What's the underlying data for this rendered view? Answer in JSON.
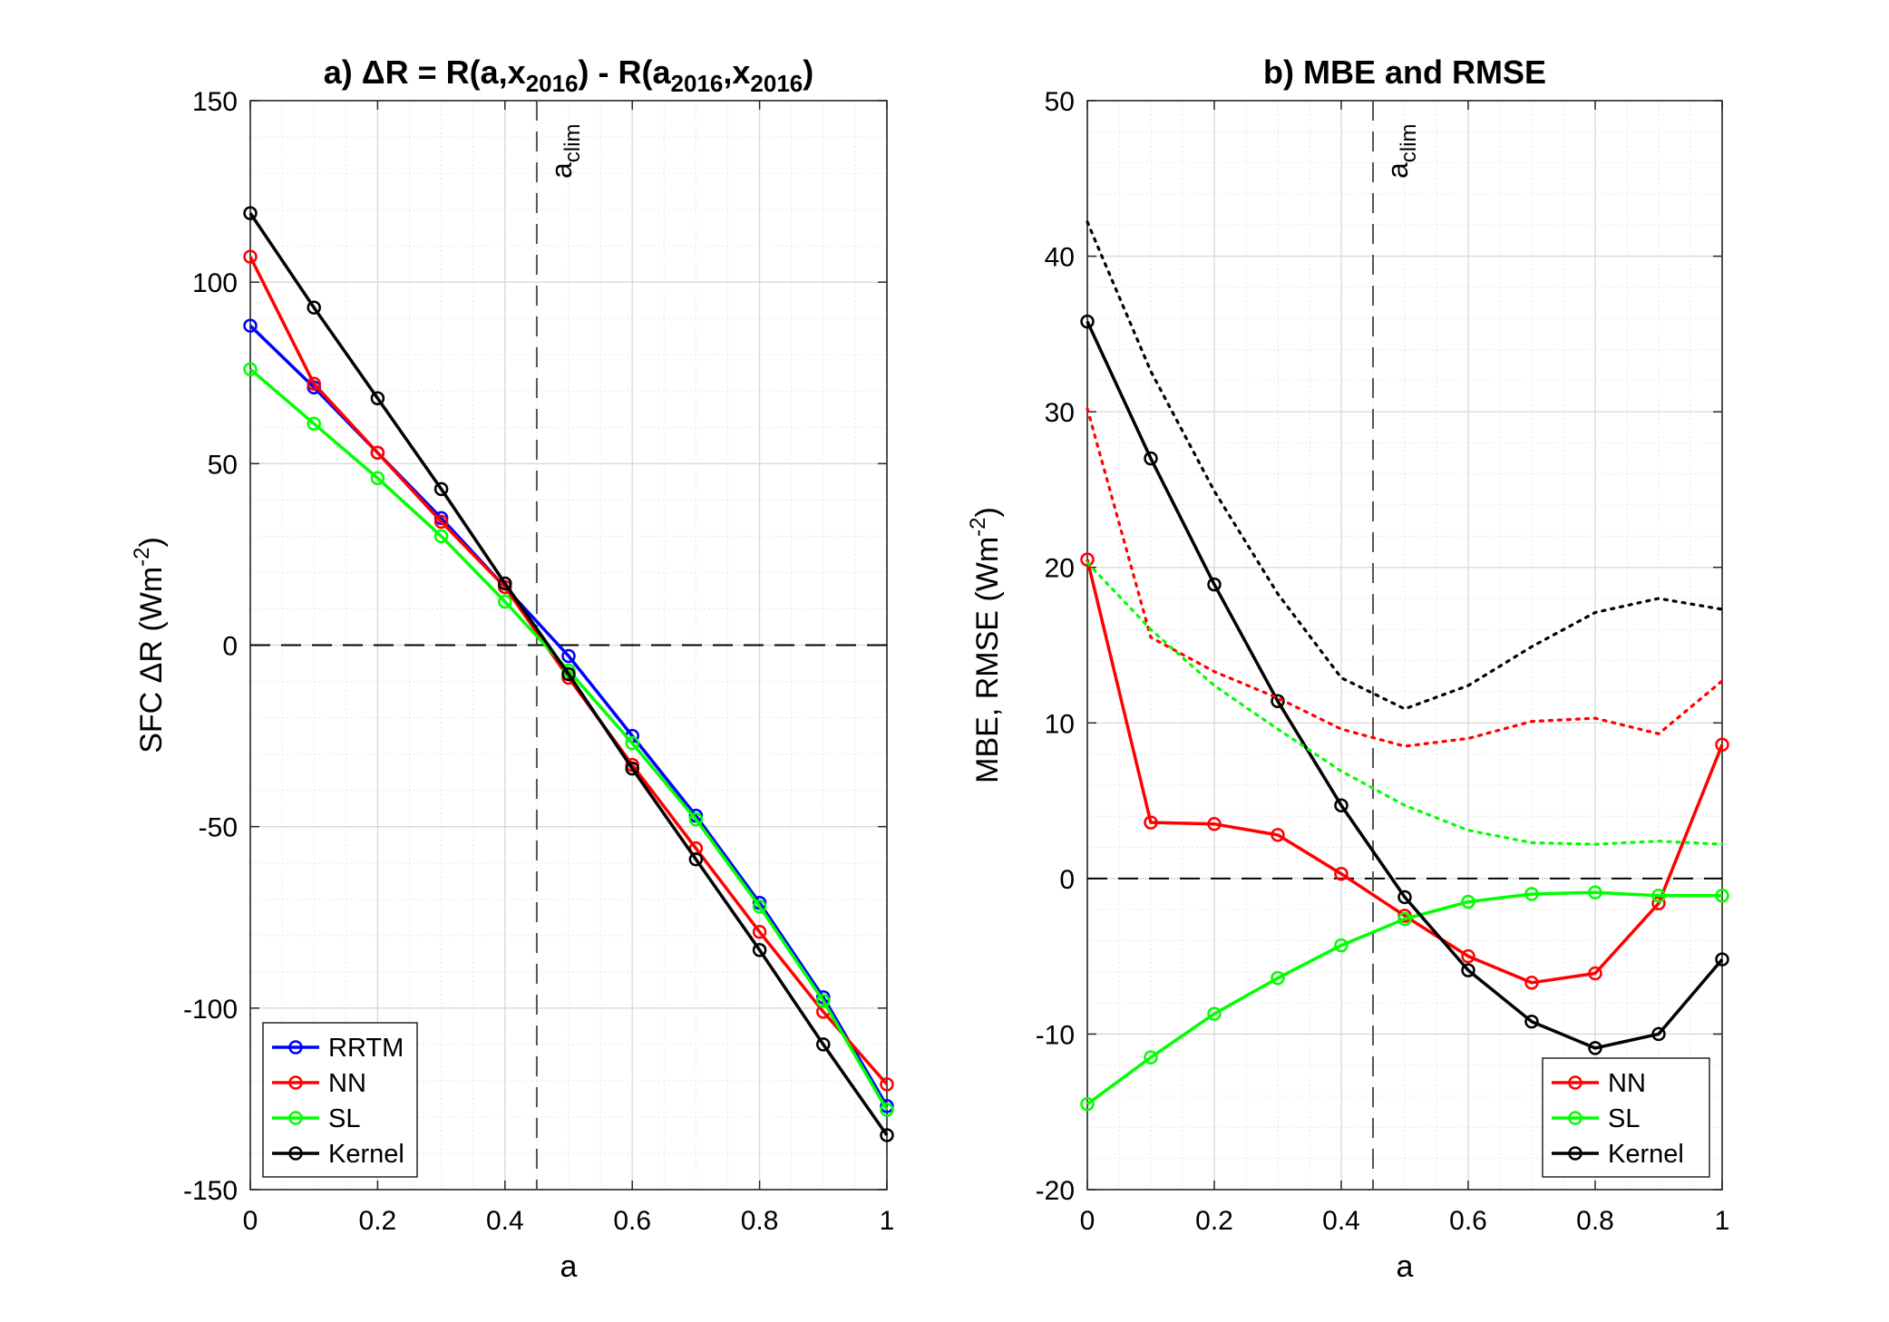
{
  "chart_data": [
    {
      "type": "line",
      "title": "a) ΔR = R(a,x2016) - R(a2016,x2016)",
      "title_parts": {
        "prefix": "a) ΔR = R(a,x",
        "sub1": "2016",
        "mid1": ") - R(a",
        "sub2": "2016",
        "mid2": ",x",
        "sub3": "2016",
        "suffix": ")"
      },
      "xlabel": "a",
      "ylabel": "SFC ΔR (Wm-2)",
      "ylabel_parts": {
        "base": "SFC ΔR (Wm",
        "sup": "-2",
        "end": ")"
      },
      "xlim": [
        0,
        1
      ],
      "ylim": [
        -150,
        150
      ],
      "xticks": [
        0,
        0.2,
        0.4,
        0.6,
        0.8,
        1
      ],
      "xtick_labels": [
        "0",
        "0.2",
        "0.4",
        "0.6",
        "0.8",
        "1"
      ],
      "yticks": [
        -150,
        -100,
        -50,
        0,
        50,
        100,
        150
      ],
      "ytick_labels": [
        "-150",
        "-100",
        "-50",
        "0",
        "50",
        "100",
        "150"
      ],
      "grid": true,
      "minor_grid": true,
      "legend_position": "bottom-left",
      "vline": {
        "x": 0.45,
        "label": "a",
        "label_sub": "clim"
      },
      "hline": {
        "y": 0
      },
      "x": [
        0,
        0.1,
        0.2,
        0.3,
        0.4,
        0.5,
        0.6,
        0.7,
        0.8,
        0.9,
        1.0
      ],
      "series": [
        {
          "name": "RRTM",
          "color": "#0000ff",
          "style": "solid",
          "marker": "circle",
          "values": [
            88,
            71,
            53,
            35,
            16,
            -3,
            -25,
            -47,
            -71,
            -97,
            -127
          ]
        },
        {
          "name": "NN",
          "color": "#ff0000",
          "style": "solid",
          "marker": "circle",
          "values": [
            107,
            72,
            53,
            34,
            16,
            -9,
            -33,
            -56,
            -79,
            -101,
            -121
          ]
        },
        {
          "name": "SL",
          "color": "#00ff00",
          "style": "solid",
          "marker": "circle",
          "values": [
            76,
            61,
            46,
            30,
            12,
            -7,
            -27,
            -48,
            -72,
            -98,
            -128
          ]
        },
        {
          "name": "Kernel",
          "color": "#000000",
          "style": "solid",
          "marker": "circle",
          "values": [
            119,
            93,
            68,
            43,
            17,
            -8,
            -34,
            -59,
            -84,
            -110,
            -135
          ]
        }
      ]
    },
    {
      "type": "line",
      "title": "b) MBE and RMSE",
      "xlabel": "a",
      "ylabel": "MBE, RMSE (Wm-2)",
      "ylabel_parts": {
        "base": "MBE, RMSE  (Wm",
        "sup": "-2",
        "end": ")"
      },
      "xlim": [
        0,
        1
      ],
      "ylim": [
        -20,
        50
      ],
      "xticks": [
        0,
        0.2,
        0.4,
        0.6,
        0.8,
        1
      ],
      "xtick_labels": [
        "0",
        "0.2",
        "0.4",
        "0.6",
        "0.8",
        "1"
      ],
      "yticks": [
        -20,
        -10,
        0,
        10,
        20,
        30,
        40,
        50
      ],
      "ytick_labels": [
        "-20",
        "-10",
        "0",
        "10",
        "20",
        "30",
        "40",
        "50"
      ],
      "grid": true,
      "minor_grid": true,
      "legend_position": "bottom-right",
      "vline": {
        "x": 0.45,
        "label": "a",
        "label_sub": "clim"
      },
      "hline": {
        "y": 0
      },
      "x": [
        0,
        0.1,
        0.2,
        0.3,
        0.4,
        0.5,
        0.6,
        0.7,
        0.8,
        0.9,
        1.0
      ],
      "series": [
        {
          "name": "NN",
          "color": "#ff0000",
          "style": "solid",
          "marker": "circle",
          "legend": true,
          "values": [
            20.5,
            3.6,
            3.5,
            2.8,
            0.3,
            -2.4,
            -5.0,
            -6.7,
            -6.1,
            -1.6,
            8.6
          ]
        },
        {
          "name": "SL",
          "color": "#00ff00",
          "style": "solid",
          "marker": "circle",
          "legend": true,
          "values": [
            -14.5,
            -11.5,
            -8.7,
            -6.4,
            -4.3,
            -2.6,
            -1.5,
            -1.0,
            -0.9,
            -1.1,
            -1.1
          ]
        },
        {
          "name": "Kernel",
          "color": "#000000",
          "style": "solid",
          "marker": "circle",
          "legend": true,
          "values": [
            35.8,
            27.0,
            18.9,
            11.4,
            4.7,
            -1.2,
            -5.9,
            -9.2,
            -10.9,
            -10.0,
            -5.2
          ]
        },
        {
          "color": "#ff0000",
          "style": "dotted",
          "marker": "none",
          "legend": false,
          "values": [
            30.2,
            15.5,
            13.3,
            11.6,
            9.6,
            8.5,
            9.0,
            10.1,
            10.3,
            9.3,
            12.7
          ]
        },
        {
          "color": "#00ff00",
          "style": "dotted",
          "marker": "none",
          "legend": false,
          "values": [
            20.3,
            16.0,
            12.4,
            9.6,
            6.9,
            4.7,
            3.1,
            2.3,
            2.2,
            2.4,
            2.2
          ]
        },
        {
          "color": "#000000",
          "style": "dotted",
          "marker": "none",
          "legend": false,
          "values": [
            42.2,
            32.6,
            24.9,
            18.3,
            12.9,
            10.9,
            12.4,
            14.9,
            17.1,
            18.0,
            17.3
          ]
        }
      ]
    }
  ]
}
